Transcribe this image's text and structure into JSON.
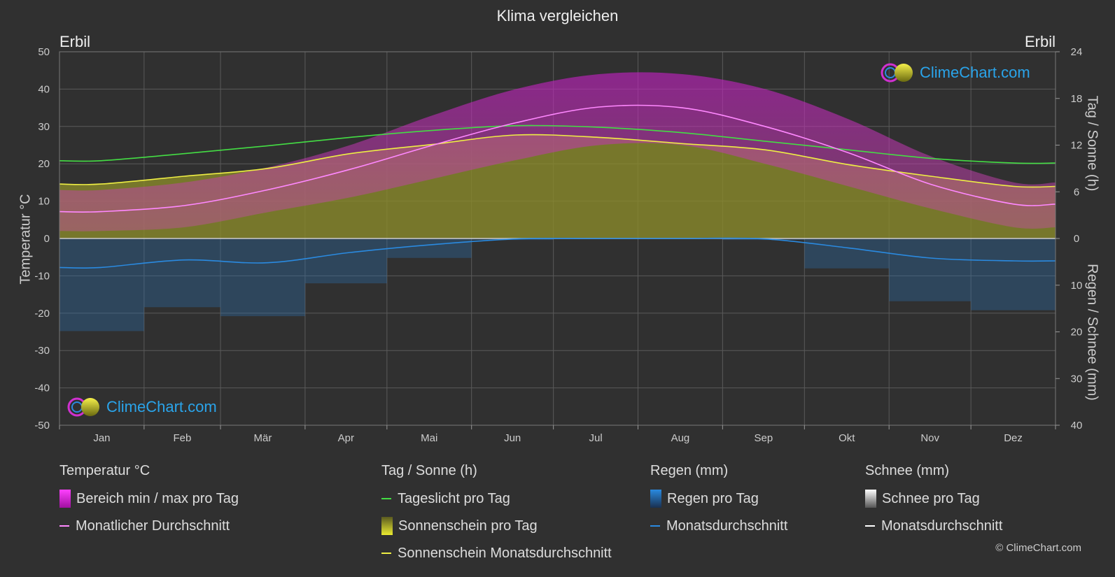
{
  "title": "Klima vergleichen",
  "location_left": "Erbil",
  "location_right": "Erbil",
  "axis": {
    "left_title": "Temperatur °C",
    "right_top_title": "Tag / Sonne (h)",
    "right_bottom_title": "Regen / Schnee (mm)"
  },
  "logo_text": "ClimeChart.com",
  "copyright": "© ClimeChart.com",
  "colors": {
    "background": "#303030",
    "temp_band": "#c020c0",
    "temp_line": "#ff88ff",
    "daylight": "#44dd44",
    "sunshine_fill": "#8a8a2a",
    "sunshine_line": "#eeee44",
    "rain": "#2a6fb0",
    "rain_line": "#2a8ae0",
    "snow": "#aaaaaa",
    "snow_line": "#ffffff",
    "logo": "#2aa4ea"
  },
  "legend": {
    "temp": {
      "header": "Temperatur °C",
      "range": "Bereich min / max pro Tag",
      "avg": "Monatlicher Durchschnitt"
    },
    "sun": {
      "header": "Tag / Sonne (h)",
      "daylight": "Tageslicht pro Tag",
      "sunshine": "Sonnenschein pro Tag",
      "sunshine_avg": "Sonnenschein Monatsdurchschnitt"
    },
    "rain": {
      "header": "Regen (mm)",
      "per_day": "Regen pro Tag",
      "avg": "Monatsdurchschnitt"
    },
    "snow": {
      "header": "Schnee (mm)",
      "per_day": "Schnee pro Tag",
      "avg": "Monatsdurchschnitt"
    }
  },
  "chart_data": {
    "type": "line",
    "months": [
      "Jan",
      "Feb",
      "Mär",
      "Apr",
      "Mai",
      "Jun",
      "Jul",
      "Aug",
      "Sep",
      "Okt",
      "Nov",
      "Dez"
    ],
    "temp_axis": {
      "min": -50,
      "max": 50,
      "ticks": [
        50,
        40,
        30,
        20,
        10,
        0,
        -10,
        -20,
        -30,
        -40,
        -50
      ]
    },
    "sun_axis": {
      "min": 0,
      "max": 24,
      "ticks": [
        24,
        18,
        12,
        6,
        0
      ]
    },
    "rain_axis": {
      "min": 0,
      "max": 40,
      "ticks": [
        0,
        10,
        20,
        30,
        40
      ]
    },
    "series": [
      {
        "name": "Bereich min / max pro Tag",
        "unit": "°C",
        "min": [
          2,
          3,
          7,
          11,
          16,
          21,
          25,
          25,
          20,
          14,
          8,
          3
        ],
        "max": [
          13,
          15,
          19,
          25,
          33,
          40,
          44,
          44,
          40,
          32,
          22,
          15
        ]
      },
      {
        "name": "Monatlicher Durchschnitt",
        "unit": "°C",
        "values": [
          7.2,
          8.8,
          13.0,
          18.5,
          25.0,
          31.0,
          35.2,
          35.0,
          30.0,
          23.0,
          14.5,
          9.2
        ]
      },
      {
        "name": "Tageslicht pro Tag",
        "unit": "h",
        "values": [
          10.0,
          10.9,
          11.9,
          13.0,
          13.9,
          14.5,
          14.3,
          13.6,
          12.5,
          11.4,
          10.3,
          9.7
        ]
      },
      {
        "name": "Sonnenschein Monatsdurchschnitt",
        "unit": "h",
        "values": [
          7.0,
          8.0,
          9.0,
          10.9,
          12.1,
          13.3,
          13.0,
          12.2,
          11.4,
          9.5,
          8.0,
          6.7
        ]
      },
      {
        "name": "Regen Monatsdurchschnitt",
        "unit": "mm",
        "values": [
          6.2,
          4.6,
          5.2,
          3.0,
          1.3,
          0.1,
          0.0,
          0.0,
          0.1,
          2.0,
          4.2,
          4.8
        ]
      },
      {
        "name": "Schnee Monatsdurchschnitt",
        "unit": "mm",
        "values": [
          0,
          0,
          0,
          0,
          0,
          0,
          0,
          0,
          0,
          0,
          0,
          0
        ]
      }
    ]
  }
}
